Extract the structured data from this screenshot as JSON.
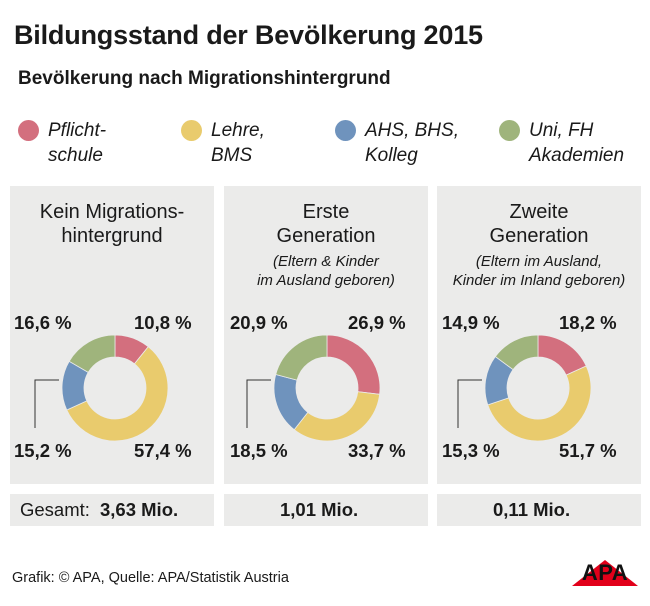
{
  "header": {
    "title": "Bildungsstand der Bevölkerung 2015",
    "subtitle": "Bevölkerung nach Migrationshintergrund"
  },
  "colors": {
    "pflichtschule": "#d36f7e",
    "lehre": "#e9cb6d",
    "ahs": "#6f93bd",
    "uni": "#9fb47c",
    "panel_bg": "#ebebea"
  },
  "chart_data": {
    "type": "pie",
    "title": "Bildungsstand der Bevölkerung 2015",
    "subtitle": "Bevölkerung nach Migrationshintergrund",
    "legend": [
      {
        "key": "pflichtschule",
        "line1": "Pflicht-",
        "line2": "schule",
        "color": "#d36f7e"
      },
      {
        "key": "lehre",
        "line1": "Lehre,",
        "line2": "BMS",
        "color": "#e9cb6d"
      },
      {
        "key": "ahs",
        "line1": "AHS, BHS,",
        "line2": "Kolleg",
        "color": "#6f93bd"
      },
      {
        "key": "uni",
        "line1": "Uni, FH",
        "line2": "Akademien",
        "color": "#9fb47c"
      }
    ],
    "panels": [
      {
        "title_line1": "Kein Migrations-",
        "title_line2": "hintergrund",
        "note_line1": "",
        "note_line2": "",
        "values": [
          10.8,
          57.4,
          15.2,
          16.6
        ],
        "labels": [
          "10,8 %",
          "57,4 %",
          "15,2 %",
          "16,6 %"
        ],
        "total_label": "Gesamt:",
        "total": "3,63 Mio."
      },
      {
        "title_line1": "Erste",
        "title_line2": "Generation",
        "note_line1": "(Eltern & Kinder",
        "note_line2": "im Ausland geboren)",
        "values": [
          26.9,
          33.7,
          18.5,
          20.9
        ],
        "labels": [
          "26,9 %",
          "33,7 %",
          "18,5 %",
          "20,9 %"
        ],
        "total_label": "",
        "total": "1,01 Mio."
      },
      {
        "title_line1": "Zweite",
        "title_line2": "Generation",
        "note_line1": "(Eltern im Ausland,",
        "note_line2": "Kinder im Inland geboren)",
        "values": [
          18.2,
          51.7,
          15.3,
          14.9
        ],
        "labels": [
          "18,2 %",
          "51,7 %",
          "15,3 %",
          "14,9 %"
        ],
        "total_label": "",
        "total": "0,11 Mio."
      }
    ]
  },
  "footer": {
    "credit": "Grafik: © APA, Quelle: APA/Statistik Austria",
    "logo": "APA"
  }
}
